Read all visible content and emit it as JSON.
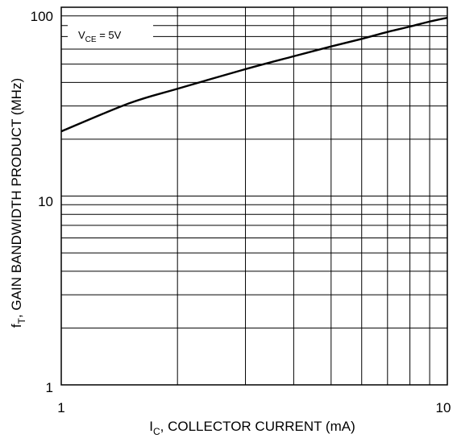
{
  "chart_data": {
    "type": "line",
    "x_scale": "log",
    "y_scale": "log",
    "xlim": [
      1,
      10
    ],
    "ylim": [
      1,
      100
    ],
    "x_ticks": [
      "1",
      "10"
    ],
    "y_ticks": [
      "100",
      "10",
      "1"
    ],
    "xlabel": {
      "main": "I",
      "sub": "C",
      "rest": ", COLLECTOR CURRENT (mA)"
    },
    "ylabel": {
      "main": "f",
      "sub": "T",
      "rest": ", GAIN BANDWIDTH PRODUCT (MHz)"
    },
    "annotation": {
      "main": "V",
      "sub": "CE",
      "rest": " = 5V"
    },
    "grid": true,
    "series": [
      {
        "x": [
          1,
          1.5,
          2,
          3,
          4,
          5,
          6,
          7,
          8,
          9,
          10
        ],
        "y": [
          22,
          31,
          37,
          47,
          55,
          62,
          68,
          74,
          79,
          84,
          88
        ]
      }
    ]
  }
}
